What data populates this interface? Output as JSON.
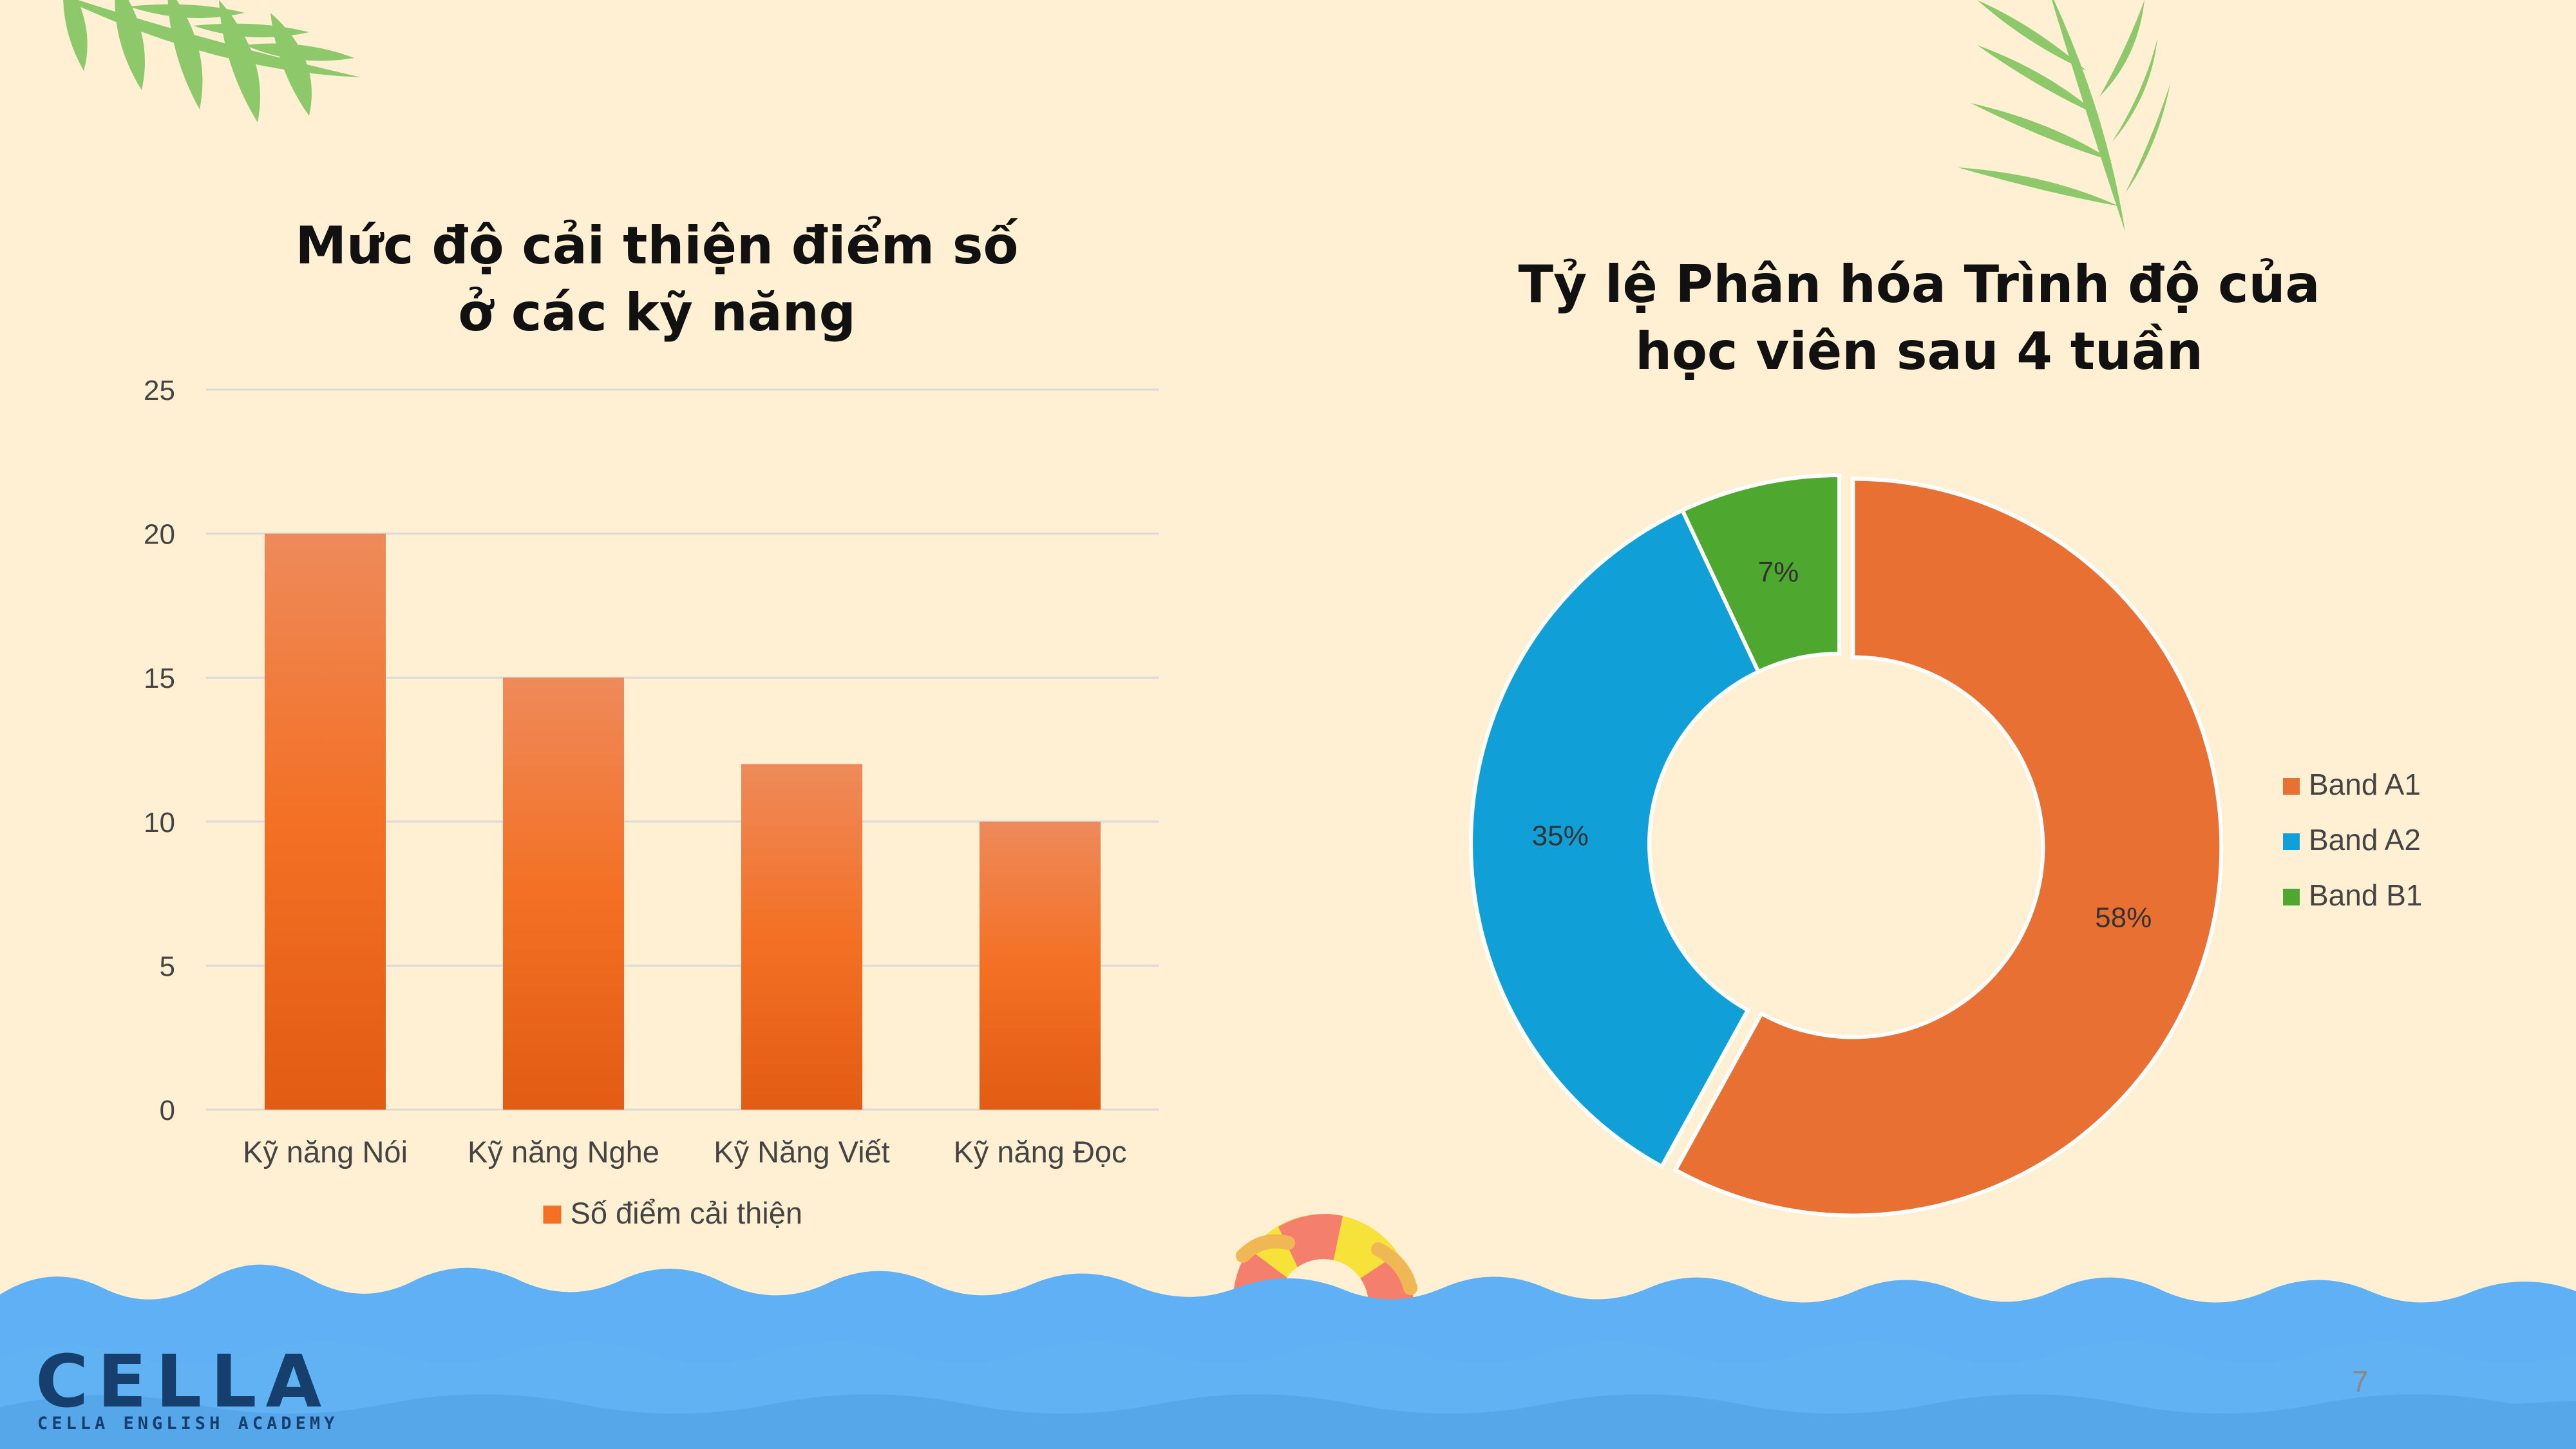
{
  "page_number": "7",
  "logo": {
    "name": "CELLA",
    "subtitle": "CELLA ENGLISH ACADEMY"
  },
  "chart_data": [
    {
      "type": "bar",
      "title_lines": [
        "Mức độ cải thiện điểm số",
        "ở các kỹ năng"
      ],
      "categories": [
        "Kỹ năng Nói",
        "Kỹ năng Nghe",
        "Kỹ Năng Viết",
        "Kỹ năng Đọc"
      ],
      "series": [
        {
          "name": "Số điểm cải thiện",
          "values": [
            20,
            15,
            12,
            10
          ]
        }
      ],
      "ylim": [
        0,
        25
      ],
      "yticks": [
        "0",
        "5",
        "10",
        "15",
        "20",
        "25"
      ],
      "grid": true,
      "legend": "bottom",
      "colors": {
        "bar_top": "#ee8a5a",
        "bar_mid": "#f37024",
        "bar_bottom": "#e25c14",
        "grid": "#d9d9d9"
      }
    },
    {
      "type": "pie",
      "donut": true,
      "title_lines": [
        "Tỷ lệ Phân hóa Trình độ của",
        "học viên sau 4 tuần"
      ],
      "slices": [
        {
          "label": "Band A1",
          "value": 58,
          "display": "58%",
          "color": "#e87032"
        },
        {
          "label": "Band A2",
          "value": 35,
          "display": "35%",
          "color": "#109fd7"
        },
        {
          "label": "Band B1",
          "value": 7,
          "display": "7%",
          "color": "#4ea72e"
        }
      ],
      "legend": "right"
    }
  ]
}
